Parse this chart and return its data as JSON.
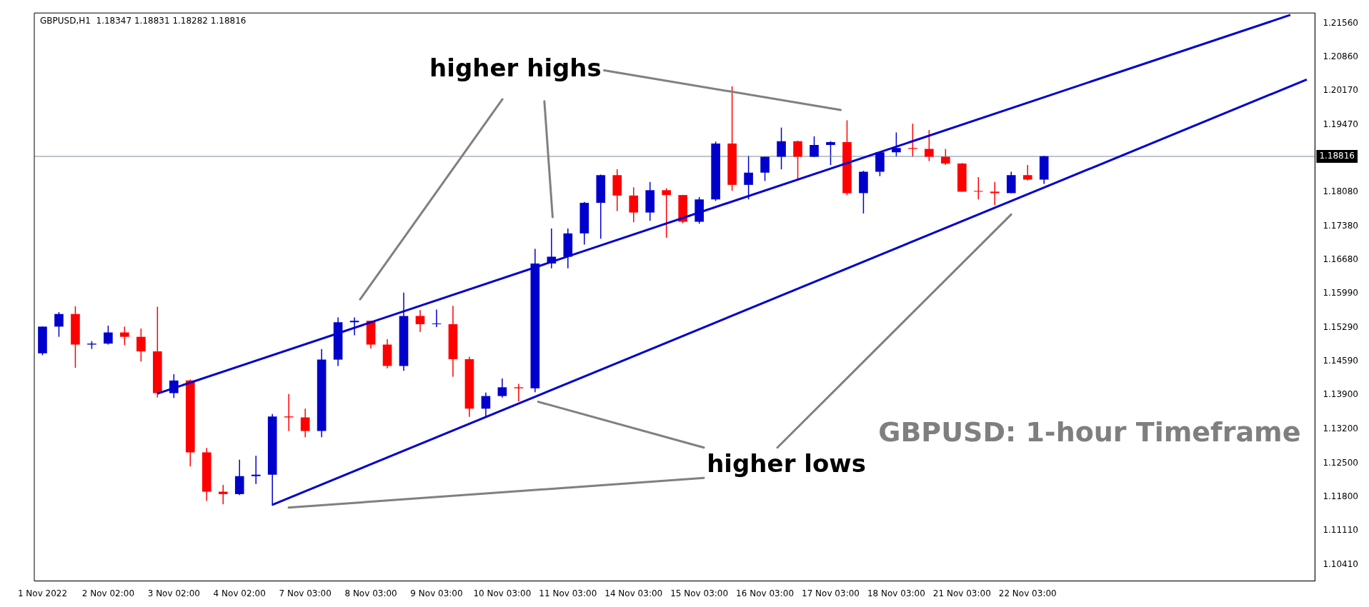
{
  "chart_data": {
    "type": "candlestick",
    "title": "GBPUSD: 1-hour Timeframe",
    "subtitle": "GBPUSD,H1  1.18347 1.18831 1.18282 1.18816",
    "annotations": [
      "higher highs",
      "higher lows"
    ],
    "categories": [
      "1 Nov 2022",
      null,
      null,
      null,
      "2 Nov 02:00",
      null,
      null,
      null,
      "3 Nov 02:00",
      null,
      null,
      null,
      "4 Nov 02:00",
      null,
      null,
      null,
      "7 Nov 03:00",
      null,
      null,
      null,
      "8 Nov 03:00",
      null,
      null,
      null,
      "9 Nov 03:00",
      null,
      null,
      null,
      "10 Nov 03:00",
      null,
      null,
      null,
      "11 Nov 03:00",
      null,
      null,
      null,
      "14 Nov 03:00",
      null,
      null,
      null,
      "15 Nov 03:00",
      null,
      null,
      null,
      "16 Nov 03:00",
      null,
      null,
      null,
      "17 Nov 03:00",
      null,
      null,
      null,
      "18 Nov 03:00",
      null,
      null,
      null,
      "21 Nov 03:00",
      null,
      null,
      null,
      "22 Nov 03:00",
      null,
      null,
      null,
      null,
      null,
      null,
      null,
      null,
      null,
      null,
      null,
      null,
      null,
      null,
      null,
      null,
      null
    ],
    "ohlc": [
      [
        1.1476,
        1.1531,
        1.1472,
        1.1531
      ],
      [
        1.1531,
        1.1561,
        1.151,
        1.1557
      ],
      [
        1.1557,
        1.1573,
        1.1446,
        1.1494
      ],
      [
        1.1494,
        1.1501,
        1.1485,
        1.1496
      ],
      [
        1.1496,
        1.1533,
        1.1494,
        1.1519
      ],
      [
        1.1519,
        1.1531,
        1.1493,
        1.151
      ],
      [
        1.151,
        1.1527,
        1.1459,
        1.148
      ],
      [
        1.148,
        1.1572,
        1.1385,
        1.1394
      ],
      [
        1.1394,
        1.1433,
        1.1384,
        1.142
      ],
      [
        1.142,
        1.1422,
        1.1243,
        1.1272
      ],
      [
        1.1272,
        1.1281,
        1.1172,
        1.1191
      ],
      [
        1.1191,
        1.1205,
        1.1165,
        1.1186
      ],
      [
        1.1186,
        1.1257,
        1.1184,
        1.1223
      ],
      [
        1.1223,
        1.1265,
        1.1207,
        1.1226
      ],
      [
        1.1226,
        1.1351,
        1.1162,
        1.1346
      ],
      [
        1.1346,
        1.1392,
        1.1316,
        1.1344
      ],
      [
        1.1344,
        1.1362,
        1.1303,
        1.1316
      ],
      [
        1.1316,
        1.1485,
        1.1303,
        1.1463
      ],
      [
        1.1463,
        1.155,
        1.145,
        1.154
      ],
      [
        1.154,
        1.155,
        1.1513,
        1.1543
      ],
      [
        1.1543,
        1.1543,
        1.1486,
        1.1494
      ],
      [
        1.1494,
        1.1505,
        1.1445,
        1.145
      ],
      [
        1.145,
        1.1601,
        1.144,
        1.1553
      ],
      [
        1.1553,
        1.1565,
        1.152,
        1.1536
      ],
      [
        1.1536,
        1.1566,
        1.153,
        1.1536
      ],
      [
        1.1536,
        1.1574,
        1.1428,
        1.1464
      ],
      [
        1.1464,
        1.1469,
        1.1345,
        1.1362
      ],
      [
        1.1362,
        1.1395,
        1.1345,
        1.1388
      ],
      [
        1.1388,
        1.1424,
        1.1385,
        1.1406
      ],
      [
        1.1406,
        1.1413,
        1.1377,
        1.1404
      ],
      [
        1.1404,
        1.1691,
        1.1396,
        1.1661
      ],
      [
        1.1661,
        1.1733,
        1.1651,
        1.1675
      ],
      [
        1.1675,
        1.1733,
        1.1651,
        1.1723
      ],
      [
        1.1723,
        1.1788,
        1.17,
        1.1786
      ],
      [
        1.1786,
        1.1844,
        1.1712,
        1.1843
      ],
      [
        1.1843,
        1.1855,
        1.1769,
        1.1801
      ],
      [
        1.1801,
        1.1818,
        1.1746,
        1.1766
      ],
      [
        1.1766,
        1.1829,
        1.1749,
        1.1812
      ],
      [
        1.1812,
        1.1816,
        1.1714,
        1.1802
      ],
      [
        1.1802,
        1.1802,
        1.1744,
        1.1747
      ],
      [
        1.1747,
        1.1798,
        1.1743,
        1.1793
      ],
      [
        1.1793,
        1.1912,
        1.179,
        1.1908
      ],
      [
        1.1908,
        1.2026,
        1.1811,
        1.1823
      ],
      [
        1.1823,
        1.1883,
        1.1793,
        1.1848
      ],
      [
        1.1848,
        1.1881,
        1.1831,
        1.1881
      ],
      [
        1.1881,
        1.1941,
        1.1855,
        1.1913
      ],
      [
        1.1913,
        1.1914,
        1.1832,
        1.1881
      ],
      [
        1.1881,
        1.1923,
        1.188,
        1.1905
      ],
      [
        1.1905,
        1.1913,
        1.1864,
        1.1911
      ],
      [
        1.1911,
        1.1956,
        1.1802,
        1.1806
      ],
      [
        1.1806,
        1.1852,
        1.1764,
        1.185
      ],
      [
        1.185,
        1.1892,
        1.1841,
        1.189
      ],
      [
        1.189,
        1.1931,
        1.1881,
        1.1899
      ],
      [
        1.1899,
        1.1949,
        1.1881,
        1.1897
      ],
      [
        1.1897,
        1.1936,
        1.1872,
        1.1881
      ],
      [
        1.1881,
        1.1897,
        1.1864,
        1.1867
      ],
      [
        1.1867,
        1.1868,
        1.1809,
        1.1809
      ],
      [
        1.1809,
        1.1839,
        1.1793,
        1.1809
      ],
      [
        1.1809,
        1.1829,
        1.1781,
        1.1806
      ],
      [
        1.1806,
        1.185,
        1.1806,
        1.1843
      ],
      [
        1.1843,
        1.1864,
        1.1832,
        1.1834
      ],
      [
        1.1834,
        1.1883,
        1.1825,
        1.1882
      ],
      null,
      null,
      null,
      null,
      null,
      null,
      null,
      null,
      null,
      null,
      null,
      null,
      null,
      null,
      null,
      null
    ],
    "colors": [
      "#0000cc",
      "#0000cc",
      "#ff0000",
      "#0000cc",
      "#0000cc",
      "#ff0000",
      "#ff0000",
      "#ff0000",
      "#0000cc",
      "#ff0000",
      "#ff0000",
      "#ff0000",
      "#0000cc",
      "#0000cc",
      "#0000cc",
      "#ff0000",
      "#ff0000",
      "#0000cc",
      "#0000cc",
      "#0000cc",
      "#ff0000",
      "#ff0000",
      "#0000cc",
      "#ff0000",
      "#0000cc",
      "#ff0000",
      "#ff0000",
      "#0000cc",
      "#0000cc",
      "#ff0000",
      "#0000cc",
      "#0000cc",
      "#0000cc",
      "#0000cc",
      "#0000cc",
      "#ff0000",
      "#ff0000",
      "#0000cc",
      "#ff0000",
      "#ff0000",
      "#0000cc",
      "#0000cc",
      "#ff0000",
      "#0000cc",
      "#0000cc",
      "#0000cc",
      "#ff0000",
      "#0000cc",
      "#0000cc",
      "#ff0000",
      "#0000cc",
      "#0000cc",
      "#0000cc",
      "#ff0000",
      "#ff0000",
      "#ff0000",
      "#ff0000",
      "#ff0000",
      "#ff0000",
      "#0000cc",
      "#ff0000",
      "#0000cc",
      null,
      null,
      null,
      null,
      null,
      null,
      null,
      null,
      null,
      null,
      null,
      null,
      null,
      null,
      null,
      null
    ],
    "series": [
      {
        "type": "line",
        "color": "#0000cc",
        "values": [
          null,
          null,
          null,
          null,
          null,
          null,
          null,
          1.1393,
          null,
          null,
          null,
          null,
          null,
          null,
          null,
          null,
          null,
          null,
          null,
          null,
          null,
          null,
          null,
          null,
          null,
          null,
          null,
          null,
          null,
          null,
          null,
          null,
          null,
          null,
          null,
          null,
          null,
          null,
          null,
          null,
          null,
          null,
          null,
          null,
          null,
          null,
          null,
          null,
          null,
          null,
          null,
          null,
          null,
          null,
          null,
          null,
          null,
          null,
          null,
          null,
          null,
          null,
          null,
          null,
          null,
          null,
          null,
          null,
          null,
          null,
          null,
          null,
          null,
          null,
          null,
          null,
          1.2173,
          null
        ]
      },
      {
        "type": "line",
        "color": "#0000cc",
        "values": [
          null,
          null,
          null,
          null,
          null,
          null,
          null,
          null,
          null,
          null,
          null,
          null,
          null,
          null,
          1.1164,
          null,
          null,
          null,
          null,
          null,
          null,
          null,
          null,
          null,
          null,
          null,
          null,
          null,
          null,
          null,
          null,
          null,
          null,
          null,
          null,
          null,
          null,
          null,
          null,
          null,
          null,
          null,
          null,
          null,
          null,
          null,
          null,
          null,
          null,
          null,
          null,
          null,
          null,
          null,
          null,
          null,
          null,
          null,
          null,
          null,
          null,
          null,
          null,
          null,
          null,
          null,
          null,
          null,
          null,
          null,
          null,
          null,
          null,
          null,
          null,
          null,
          null,
          1.204
        ]
      }
    ],
    "ref_lines": [
      {
        "axis": "y",
        "value": 1.18816,
        "label": "1.18816",
        "color": "#7f8c99"
      }
    ],
    "ylim": [
      1.1007,
      1.2177
    ],
    "yticks": [
      {
        "value": 1.1041,
        "label": "1.10410"
      },
      {
        "value": 1.1111,
        "label": "1.11110"
      },
      {
        "value": 1.118,
        "label": "1.11800"
      },
      {
        "value": 1.125,
        "label": "1.12500"
      },
      {
        "value": 1.132,
        "label": "1.13200"
      },
      {
        "value": 1.139,
        "label": "1.13900"
      },
      {
        "value": 1.1459,
        "label": "1.14590"
      },
      {
        "value": 1.1529,
        "label": "1.15290"
      },
      {
        "value": 1.1599,
        "label": "1.15990"
      },
      {
        "value": 1.1668,
        "label": "1.16680"
      },
      {
        "value": 1.1738,
        "label": "1.17380"
      },
      {
        "value": 1.1808,
        "label": "1.18080"
      },
      {
        "value": 1.1947,
        "label": "1.19470"
      },
      {
        "value": 1.2017,
        "label": "1.20170"
      },
      {
        "value": 1.2086,
        "label": "1.20860"
      },
      {
        "value": 1.2156,
        "label": "1.21560"
      }
    ],
    "legend": false
  }
}
